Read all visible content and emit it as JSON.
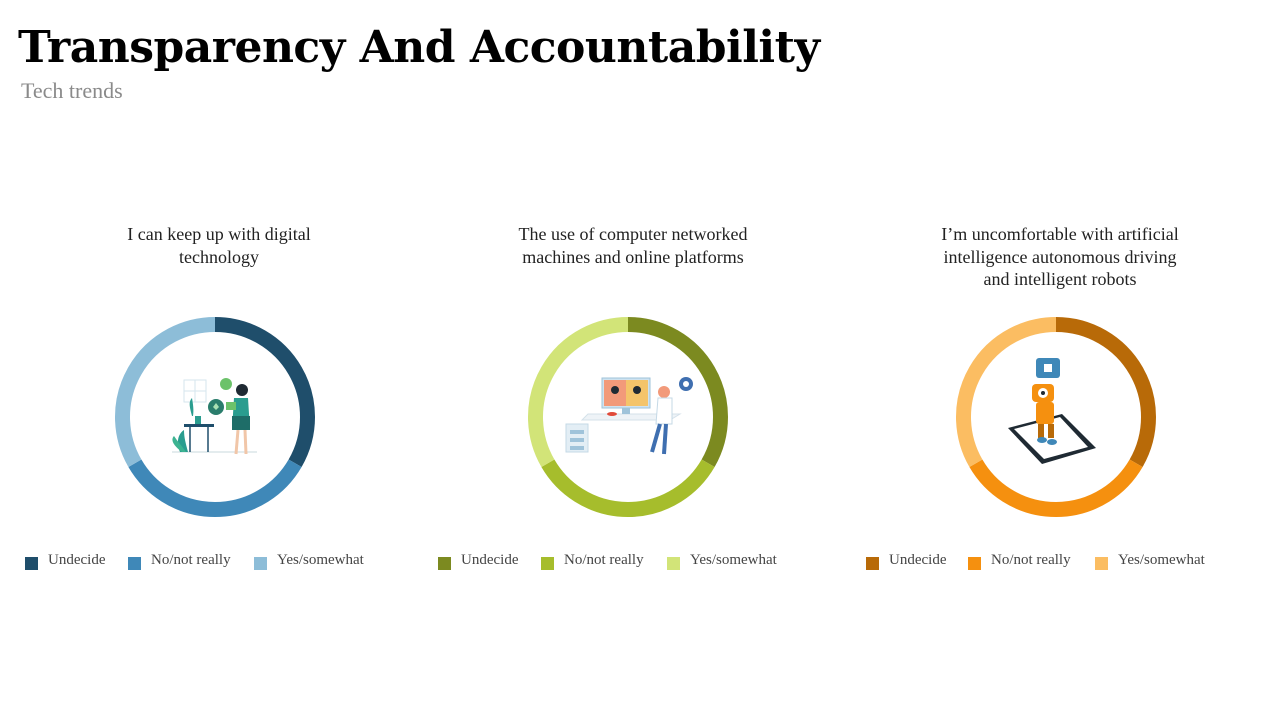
{
  "slide": {
    "title": "Transparency And Accountability",
    "subtitle": "Tech trends"
  },
  "chart_data": [
    {
      "type": "pie",
      "style": "donut",
      "title": "I can keep up with digital technology",
      "categories": [
        "Undecide",
        "No/not really",
        "Yes/somewhat"
      ],
      "values": [
        33.3,
        33.3,
        33.3
      ],
      "colors": [
        "#1f4e6b",
        "#3f88b8",
        "#8dbdd8"
      ],
      "illustration_icon": "woman-with-plants-icon"
    },
    {
      "type": "pie",
      "style": "donut",
      "title": "The use of computer networked machines and online platforms",
      "categories": [
        "Undecide",
        "No/not really",
        "Yes/somewhat"
      ],
      "values": [
        33.3,
        33.3,
        33.3
      ],
      "colors": [
        "#7c8a20",
        "#a6bd2c",
        "#d2e478"
      ],
      "illustration_icon": "video-call-desk-icon"
    },
    {
      "type": "pie",
      "style": "donut",
      "title": "I’m uncomfortable with artificial intelligence autonomous driving and intelligent robots",
      "categories": [
        "Undecide",
        "No/not really",
        "Yes/somewhat"
      ],
      "values": [
        33.3,
        33.3,
        33.3
      ],
      "colors": [
        "#b86a08",
        "#f5900f",
        "#fbbd62"
      ],
      "illustration_icon": "robot-on-phone-icon"
    }
  ]
}
